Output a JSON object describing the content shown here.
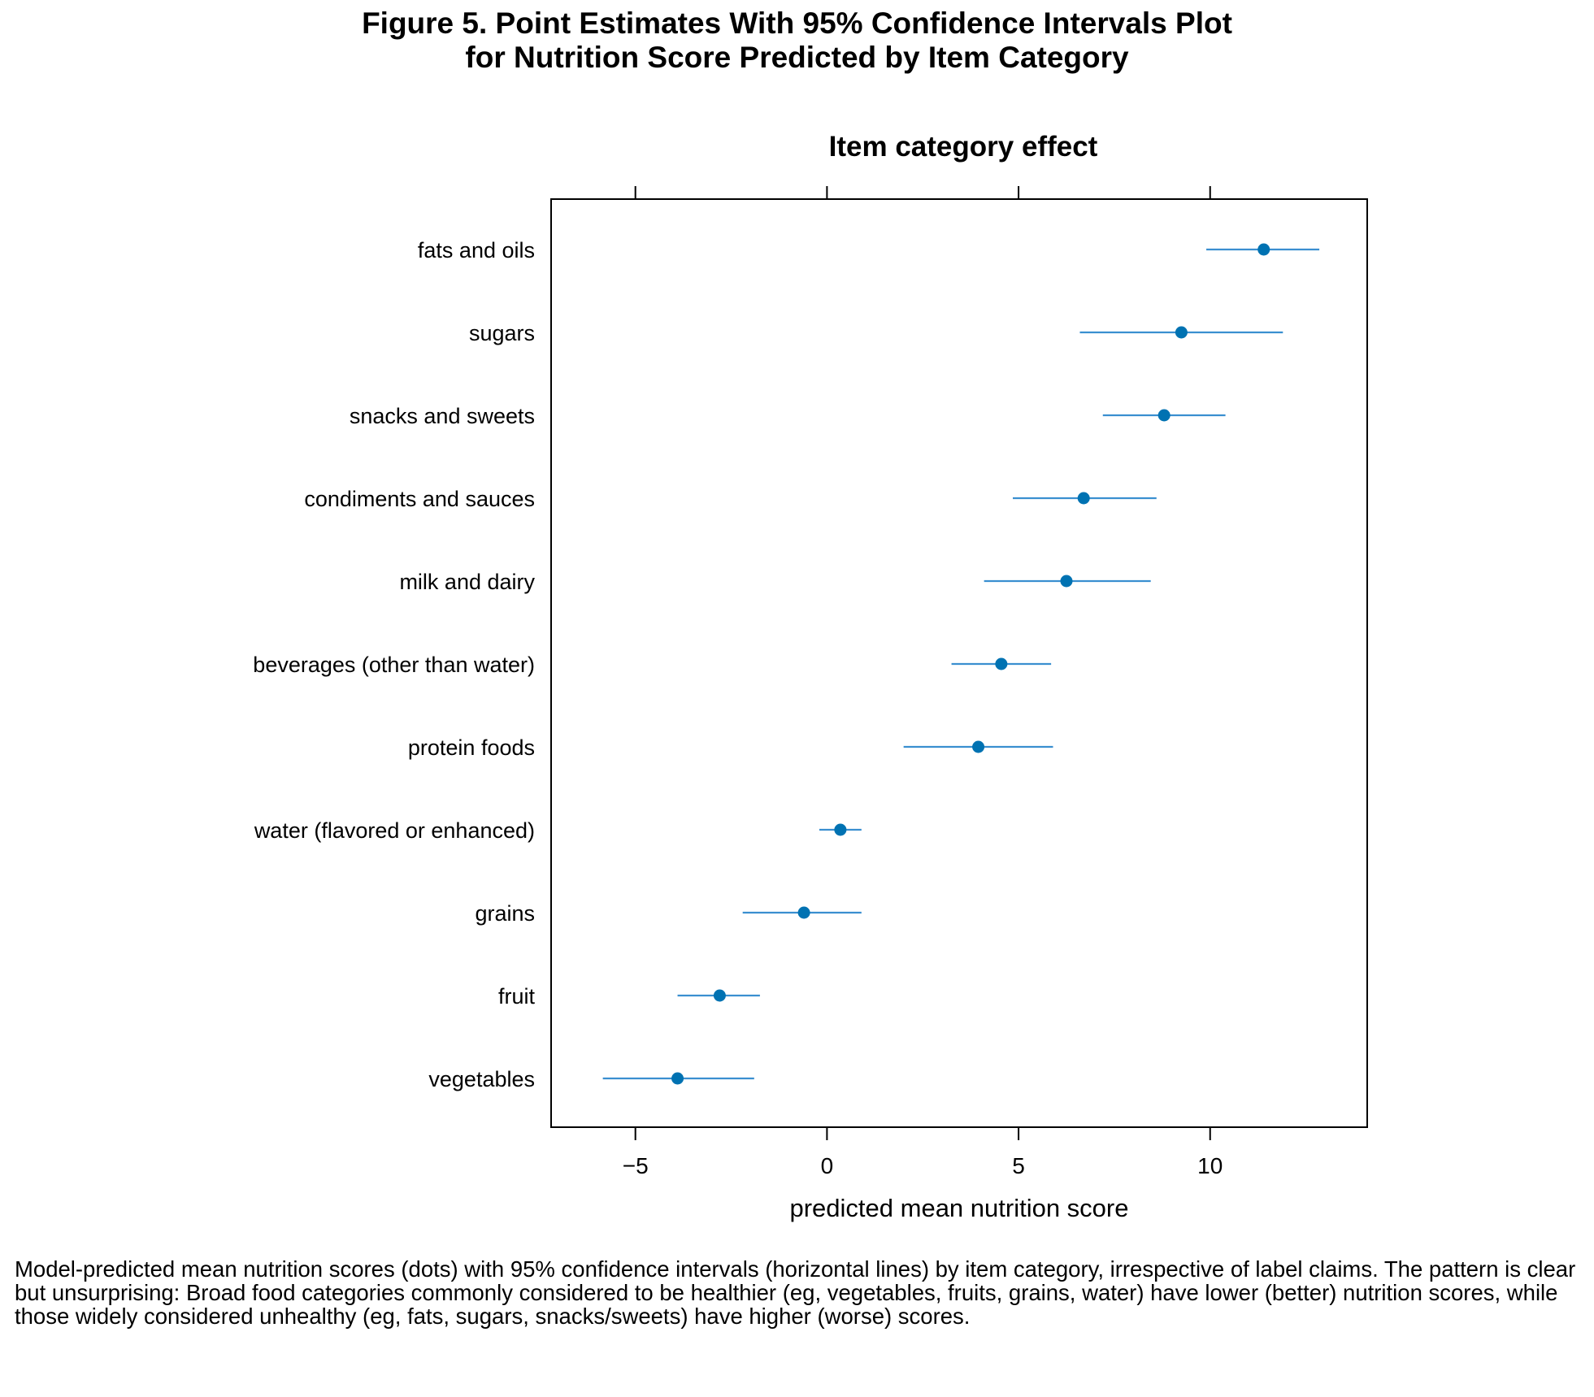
{
  "figure": {
    "title_line1": "Figure 5. Point Estimates With 95% Confidence Intervals Plot",
    "title_line2": "for Nutrition Score Predicted by Item Category",
    "caption": "Model-predicted mean nutrition scores (dots) with 95% confidence intervals (horizontal lines) by item category, irrespective of label claims. The pattern is clear but unsurprising: Broad food categories commonly considered to be healthier (eg, vegetables, fruits, grains, water) have lower (better) nutrition scores, while those widely considered unhealthy (eg, fats, sugars, snacks/sweets) have higher (worse) scores."
  },
  "chart_data": {
    "type": "scatter",
    "subtype": "point-estimates-with-confidence-intervals",
    "title": "Item category effect",
    "xlabel": "predicted mean nutrition score",
    "ylabel": "",
    "xlim": [
      -7.2,
      14.1
    ],
    "xticks": [
      -5,
      0,
      5,
      10
    ],
    "xtick_labels": [
      "−5",
      "0",
      "5",
      "10"
    ],
    "grid": false,
    "legend": "none",
    "colors": {
      "estimate": "#0072b2",
      "interval": "#3a8fd0",
      "frame": "#000000"
    },
    "categories": [
      "fats and oils",
      "sugars",
      "snacks and sweets",
      "condiments and sauces",
      "milk and dairy",
      "beverages (other than water)",
      "protein foods",
      "water (flavored or enhanced)",
      "grains",
      "fruit",
      "vegetables"
    ],
    "estimates": [
      11.4,
      9.25,
      8.8,
      6.7,
      6.25,
      4.55,
      3.95,
      0.35,
      -0.6,
      -2.8,
      -3.9
    ],
    "ci_lower": [
      9.9,
      6.6,
      7.2,
      4.85,
      4.1,
      3.25,
      2.0,
      -0.2,
      -2.2,
      -3.9,
      -5.85
    ],
    "ci_upper": [
      12.85,
      11.9,
      10.4,
      8.6,
      8.45,
      5.85,
      5.9,
      0.9,
      0.9,
      -1.75,
      -1.9
    ]
  }
}
